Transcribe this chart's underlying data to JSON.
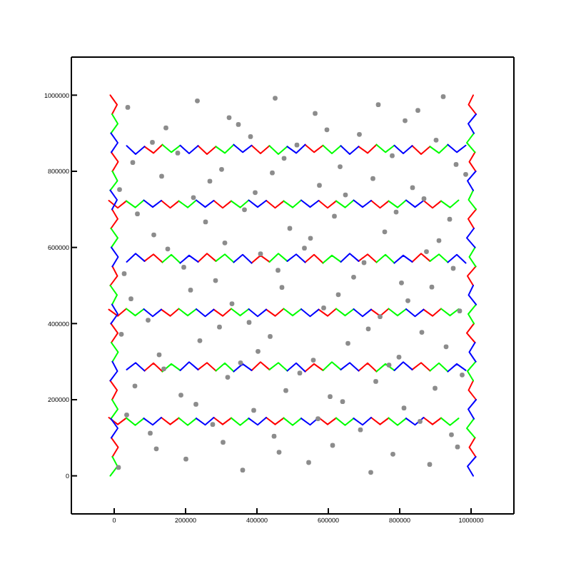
{
  "chart_data": {
    "type": "line",
    "xlim": [
      -120000,
      1120000
    ],
    "ylim": [
      -100000,
      1100000
    ],
    "xticks": [
      0,
      200000,
      400000,
      600000,
      800000,
      1000000
    ],
    "yticks": [
      0,
      200000,
      400000,
      600000,
      800000,
      1000000
    ],
    "series": [
      {
        "color": "#ff0000",
        "x": [
          85000,
          110000,
          135000,
          185000,
          235000,
          260000,
          285000,
          335000,
          385000,
          410000,
          435000,
          485000,
          535000,
          560000,
          585000,
          635000,
          685000,
          710000,
          735000,
          785000,
          835000,
          860000,
          885000
        ],
        "values": [
          865000,
          848000,
          870000,
          null,
          867000,
          845000,
          865000,
          null,
          868000,
          847000,
          867000,
          null,
          870000,
          850000,
          868000,
          null,
          865000,
          848000,
          870000,
          null,
          867000,
          845000,
          865000
        ]
      },
      {
        "color": "#00ff00",
        "x": [
          135000,
          160000,
          185000,
          235000,
          285000,
          310000,
          335000,
          385000,
          435000,
          460000,
          485000,
          535000,
          585000,
          610000,
          635000,
          685000,
          735000,
          760000,
          785000,
          835000,
          885000,
          910000,
          935000
        ],
        "values": [
          870000,
          850000,
          868000,
          null,
          865000,
          848000,
          870000,
          null,
          867000,
          845000,
          865000,
          null,
          868000,
          847000,
          867000,
          null,
          870000,
          850000,
          868000,
          null,
          865000,
          848000,
          870000
        ]
      },
      {
        "color": "#0000ff",
        "x": [
          35000,
          60000,
          85000,
          135000,
          185000,
          210000,
          235000,
          285000,
          335000,
          360000,
          385000,
          435000,
          485000,
          510000,
          535000,
          585000,
          635000,
          660000,
          685000,
          735000,
          785000,
          810000,
          835000,
          885000,
          935000,
          960000,
          985000
        ],
        "values": [
          867000,
          845000,
          865000,
          null,
          868000,
          847000,
          867000,
          null,
          870000,
          850000,
          868000,
          null,
          865000,
          848000,
          870000,
          null,
          867000,
          845000,
          865000,
          null,
          868000,
          847000,
          867000,
          null,
          870000,
          850000,
          868000
        ]
      },
      {
        "color": "#ff0000",
        "x": [
          -15000,
          10000,
          34000,
          83000,
          132000,
          157000,
          181000,
          230000,
          279000,
          304000,
          328000,
          377000,
          426000,
          451000,
          475000,
          524000,
          573000,
          598000,
          622000,
          671000,
          720000,
          745000,
          769000,
          818000,
          867000,
          892000,
          916000
        ],
        "values": [
          723000,
          704000,
          722000,
          null,
          723000,
          704000,
          722000,
          null,
          723000,
          704000,
          722000,
          null,
          723000,
          704000,
          722000,
          null,
          723000,
          704000,
          722000,
          null,
          723000,
          704000,
          722000,
          null,
          723000,
          704000,
          722000
        ]
      },
      {
        "color": "#00ff00",
        "x": [
          34000,
          59000,
          83000,
          132000,
          181000,
          206000,
          230000,
          279000,
          328000,
          353000,
          377000,
          426000,
          475000,
          500000,
          524000,
          573000,
          622000,
          647000,
          671000,
          720000,
          769000,
          794000,
          818000,
          867000,
          916000,
          941000,
          965000
        ],
        "values": [
          722000,
          705000,
          724000,
          null,
          722000,
          705000,
          724000,
          null,
          722000,
          705000,
          724000,
          null,
          722000,
          705000,
          724000,
          null,
          722000,
          705000,
          724000,
          null,
          722000,
          705000,
          724000,
          null,
          722000,
          705000,
          724000
        ]
      },
      {
        "color": "#0000ff",
        "x": [
          83000,
          108000,
          132000,
          181000,
          230000,
          255000,
          279000,
          328000,
          377000,
          402000,
          426000,
          475000,
          524000,
          549000,
          573000,
          622000,
          671000,
          696000,
          720000,
          769000,
          818000,
          843000,
          867000
        ],
        "values": [
          724000,
          706000,
          723000,
          null,
          724000,
          706000,
          723000,
          null,
          724000,
          706000,
          723000,
          null,
          724000,
          706000,
          723000,
          null,
          724000,
          706000,
          723000,
          null,
          724000,
          706000,
          723000
        ]
      },
      {
        "color": "#ff0000",
        "x": [
          85000,
          110000,
          135000,
          185000,
          235000,
          260000,
          285000,
          335000,
          385000,
          410000,
          435000,
          485000,
          535000,
          560000,
          585000,
          635000,
          685000,
          710000,
          735000,
          785000,
          835000,
          860000,
          885000
        ],
        "values": [
          564000,
          582000,
          561000,
          null,
          562000,
          584000,
          564000,
          null,
          559000,
          579000,
          562000,
          null,
          561000,
          581000,
          559000,
          null,
          564000,
          582000,
          561000,
          null,
          562000,
          584000,
          564000
        ]
      },
      {
        "color": "#00ff00",
        "x": [
          135000,
          160000,
          185000,
          235000,
          285000,
          310000,
          335000,
          385000,
          435000,
          460000,
          485000,
          535000,
          585000,
          610000,
          635000,
          685000,
          735000,
          760000,
          785000,
          835000,
          885000,
          910000,
          935000
        ],
        "values": [
          561000,
          581000,
          559000,
          null,
          564000,
          582000,
          561000,
          null,
          562000,
          584000,
          564000,
          null,
          559000,
          579000,
          562000,
          null,
          561000,
          581000,
          559000,
          null,
          564000,
          582000,
          561000
        ]
      },
      {
        "color": "#0000ff",
        "x": [
          35000,
          60000,
          85000,
          135000,
          185000,
          210000,
          235000,
          285000,
          335000,
          360000,
          385000,
          435000,
          485000,
          510000,
          535000,
          585000,
          635000,
          660000,
          685000,
          735000,
          785000,
          810000,
          835000,
          885000,
          935000,
          960000,
          985000
        ],
        "values": [
          562000,
          584000,
          564000,
          null,
          559000,
          579000,
          562000,
          null,
          561000,
          581000,
          559000,
          null,
          564000,
          582000,
          561000,
          null,
          562000,
          584000,
          564000,
          null,
          559000,
          579000,
          562000,
          null,
          561000,
          581000,
          559000
        ]
      },
      {
        "color": "#ff0000",
        "x": [
          -15000,
          10000,
          34000,
          83000,
          132000,
          157000,
          181000,
          230000,
          279000,
          304000,
          328000,
          377000,
          426000,
          451000,
          475000,
          524000,
          573000,
          598000,
          622000,
          671000,
          720000,
          745000,
          769000,
          818000,
          867000,
          892000,
          916000
        ],
        "values": [
          437000,
          420000,
          439000,
          null,
          437000,
          420000,
          439000,
          null,
          437000,
          420000,
          439000,
          null,
          437000,
          420000,
          439000,
          null,
          437000,
          420000,
          439000,
          null,
          437000,
          420000,
          439000,
          null,
          437000,
          420000,
          439000
        ]
      },
      {
        "color": "#00ff00",
        "x": [
          34000,
          59000,
          83000,
          132000,
          181000,
          206000,
          230000,
          279000,
          328000,
          353000,
          377000,
          426000,
          475000,
          500000,
          524000,
          573000,
          622000,
          647000,
          671000,
          720000,
          769000,
          794000,
          818000,
          867000,
          916000,
          941000,
          965000
        ],
        "values": [
          439000,
          421000,
          438000,
          null,
          439000,
          421000,
          438000,
          null,
          439000,
          421000,
          438000,
          null,
          439000,
          421000,
          438000,
          null,
          439000,
          421000,
          438000,
          null,
          439000,
          421000,
          438000,
          null,
          439000,
          421000,
          438000
        ]
      },
      {
        "color": "#0000ff",
        "x": [
          83000,
          108000,
          132000,
          181000,
          230000,
          255000,
          279000,
          328000,
          377000,
          402000,
          426000,
          475000,
          524000,
          549000,
          573000,
          622000,
          671000,
          696000,
          720000,
          769000,
          818000,
          843000,
          867000
        ],
        "values": [
          438000,
          419000,
          437000,
          null,
          438000,
          419000,
          437000,
          null,
          438000,
          419000,
          437000,
          null,
          438000,
          419000,
          437000,
          null,
          438000,
          419000,
          437000,
          null,
          438000,
          419000,
          437000
        ]
      },
      {
        "color": "#ff0000",
        "x": [
          85000,
          110000,
          135000,
          185000,
          235000,
          260000,
          285000,
          335000,
          385000,
          410000,
          435000,
          485000,
          535000,
          560000,
          585000,
          635000,
          685000,
          710000,
          735000,
          785000,
          835000,
          860000,
          885000
        ],
        "values": [
          276000,
          296000,
          274000,
          null,
          279000,
          297000,
          276000,
          null,
          277000,
          299000,
          279000,
          null,
          274000,
          294000,
          277000,
          null,
          276000,
          296000,
          274000,
          null,
          279000,
          297000,
          276000
        ]
      },
      {
        "color": "#00ff00",
        "x": [
          135000,
          160000,
          185000,
          235000,
          285000,
          310000,
          335000,
          385000,
          435000,
          460000,
          485000,
          535000,
          585000,
          610000,
          635000,
          685000,
          735000,
          760000,
          785000,
          835000,
          885000,
          910000,
          935000
        ],
        "values": [
          274000,
          294000,
          277000,
          null,
          276000,
          296000,
          274000,
          null,
          279000,
          297000,
          276000,
          null,
          277000,
          299000,
          279000,
          null,
          274000,
          294000,
          277000,
          null,
          276000,
          296000,
          274000
        ]
      },
      {
        "color": "#0000ff",
        "x": [
          35000,
          60000,
          85000,
          135000,
          185000,
          210000,
          235000,
          285000,
          335000,
          360000,
          385000,
          435000,
          485000,
          510000,
          535000,
          585000,
          635000,
          660000,
          685000,
          735000,
          785000,
          810000,
          835000,
          885000,
          935000,
          960000,
          985000
        ],
        "values": [
          279000,
          297000,
          276000,
          null,
          277000,
          299000,
          279000,
          null,
          274000,
          294000,
          277000,
          null,
          276000,
          296000,
          274000,
          null,
          279000,
          297000,
          276000,
          null,
          277000,
          299000,
          279000,
          null,
          274000,
          294000,
          277000
        ]
      },
      {
        "color": "#ff0000",
        "x": [
          -15000,
          10000,
          34000,
          83000,
          132000,
          157000,
          181000,
          230000,
          279000,
          304000,
          328000,
          377000,
          426000,
          451000,
          475000,
          524000,
          573000,
          598000,
          622000,
          671000,
          720000,
          745000,
          769000,
          818000,
          867000,
          892000,
          916000
        ],
        "values": [
          153000,
          135000,
          152000,
          null,
          153000,
          135000,
          152000,
          null,
          153000,
          135000,
          152000,
          null,
          153000,
          135000,
          152000,
          null,
          153000,
          135000,
          152000,
          null,
          153000,
          135000,
          152000,
          null,
          153000,
          135000,
          152000
        ]
      },
      {
        "color": "#00ff00",
        "x": [
          34000,
          59000,
          83000,
          132000,
          181000,
          206000,
          230000,
          279000,
          328000,
          353000,
          377000,
          426000,
          475000,
          500000,
          524000,
          573000,
          622000,
          647000,
          671000,
          720000,
          769000,
          794000,
          818000,
          867000,
          916000,
          941000,
          965000
        ],
        "values": [
          152000,
          133000,
          151000,
          null,
          152000,
          133000,
          151000,
          null,
          152000,
          133000,
          151000,
          null,
          152000,
          133000,
          151000,
          null,
          152000,
          133000,
          151000,
          null,
          152000,
          133000,
          151000,
          null,
          152000,
          133000,
          151000
        ]
      },
      {
        "color": "#0000ff",
        "x": [
          83000,
          108000,
          132000,
          181000,
          230000,
          255000,
          279000,
          328000,
          377000,
          402000,
          426000,
          475000,
          524000,
          549000,
          573000,
          622000,
          671000,
          696000,
          720000,
          769000,
          818000,
          843000,
          867000
        ],
        "values": [
          151000,
          134000,
          153000,
          null,
          151000,
          134000,
          153000,
          null,
          151000,
          134000,
          153000,
          null,
          151000,
          134000,
          153000,
          null,
          151000,
          134000,
          153000,
          null,
          151000,
          134000,
          153000
        ]
      },
      {
        "color": "#ff0000",
        "x": [
          -11000,
          8000,
          -6000,
          null,
          -8000,
          11000,
          -5000,
          null,
          -6000,
          10000,
          -9000,
          null,
          -5000,
          9000,
          -11000,
          null,
          -9000,
          10000,
          -8000,
          null,
          -11000,
          8000,
          -6000,
          null,
          -8000,
          11000,
          -5000
        ],
        "values": [
          1000000,
          975000,
          950000,
          null,
          850000,
          825000,
          800000,
          null,
          700000,
          675000,
          650000,
          null,
          550000,
          525000,
          500000,
          null,
          400000,
          375000,
          350000,
          null,
          250000,
          225000,
          200000,
          null,
          100000,
          75000,
          50000
        ]
      },
      {
        "color": "#00ff00",
        "x": [
          -6000,
          10000,
          -9000,
          null,
          -5000,
          9000,
          -11000,
          null,
          -9000,
          10000,
          -8000,
          null,
          -11000,
          8000,
          -6000,
          null,
          -8000,
          11000,
          -5000,
          null,
          -6000,
          10000,
          -9000,
          null,
          -5000,
          9000,
          -11000
        ],
        "values": [
          950000,
          925000,
          900000,
          null,
          800000,
          775000,
          750000,
          null,
          650000,
          625000,
          600000,
          null,
          500000,
          475000,
          450000,
          null,
          350000,
          325000,
          300000,
          null,
          200000,
          175000,
          150000,
          null,
          50000,
          25000,
          0
        ]
      },
      {
        "color": "#0000ff",
        "x": [
          -9000,
          10000,
          -8000,
          null,
          -11000,
          8000,
          -6000,
          null,
          -8000,
          11000,
          -5000,
          null,
          -6000,
          10000,
          -9000,
          null,
          -5000,
          9000,
          -11000,
          null,
          -9000,
          10000,
          -8000
        ],
        "values": [
          900000,
          875000,
          850000,
          null,
          750000,
          725000,
          700000,
          null,
          600000,
          575000,
          550000,
          null,
          450000,
          425000,
          400000,
          null,
          300000,
          275000,
          250000,
          null,
          150000,
          125000,
          100000
        ]
      },
      {
        "color": "#ff0000",
        "x": [
          1013000,
          995000,
          1011000,
          null,
          1014000,
          993000,
          1006000,
          null,
          1011000,
          988000,
          1008000,
          null,
          1006000,
          990000,
          1013000,
          null,
          1008000,
          992000,
          1014000,
          null,
          1013000,
          995000,
          1011000,
          null,
          1014000,
          993000,
          1006000
        ],
        "values": [
          50000,
          75000,
          100000,
          null,
          200000,
          225000,
          250000,
          null,
          350000,
          375000,
          400000,
          null,
          500000,
          525000,
          550000,
          null,
          650000,
          675000,
          700000,
          null,
          800000,
          825000,
          850000,
          null,
          950000,
          975000,
          1000000
        ]
      },
      {
        "color": "#00ff00",
        "x": [
          1011000,
          988000,
          1008000,
          null,
          1006000,
          990000,
          1013000,
          null,
          1008000,
          992000,
          1014000,
          null,
          1013000,
          995000,
          1011000,
          null,
          1014000,
          993000,
          1006000,
          null,
          1011000,
          988000,
          1008000
        ],
        "values": [
          100000,
          125000,
          150000,
          null,
          250000,
          275000,
          300000,
          null,
          400000,
          425000,
          450000,
          null,
          550000,
          575000,
          600000,
          null,
          700000,
          725000,
          750000,
          null,
          850000,
          875000,
          900000
        ]
      },
      {
        "color": "#0000ff",
        "x": [
          1006000,
          990000,
          1013000,
          null,
          1008000,
          992000,
          1014000,
          null,
          1013000,
          995000,
          1011000,
          null,
          1014000,
          993000,
          1006000,
          null,
          1011000,
          988000,
          1008000,
          null,
          1006000,
          990000,
          1013000,
          null,
          1008000,
          992000,
          1014000
        ],
        "values": [
          0,
          25000,
          50000,
          null,
          150000,
          175000,
          200000,
          null,
          300000,
          325000,
          350000,
          null,
          450000,
          475000,
          500000,
          null,
          600000,
          625000,
          650000,
          null,
          750000,
          775000,
          800000,
          null,
          900000,
          925000,
          950000
        ]
      },
      {
        "type": "scatter",
        "marker": "circle",
        "color": "#8c8c8c",
        "x": [
          12000,
          118000,
          201000,
          305000,
          360000,
          462000,
          545000,
          612000,
          719000,
          781000,
          884000,
          962000,
          35000,
          101000,
          229000,
          276000,
          391000,
          448000,
          571000,
          640000,
          690000,
          812000,
          857000,
          945000,
          58000,
          139000,
          187000,
          318000,
          354000,
          481000,
          520000,
          605000,
          733000,
          770000,
          899000,
          975000,
          20000,
          126000,
          240000,
          295000,
          403000,
          437000,
          558000,
          655000,
          712000,
          798000,
          862000,
          930000,
          47000,
          95000,
          214000,
          330000,
          378000,
          470000,
          587000,
          628000,
          745000,
          823000,
          890000,
          968000,
          28000,
          150000,
          195000,
          284000,
          410000,
          459000,
          533000,
          671000,
          700000,
          805000,
          875000,
          950000,
          65000,
          111000,
          256000,
          310000,
          365000,
          492000,
          550000,
          617000,
          758000,
          790000,
          910000,
          940000,
          15000,
          133000,
          222000,
          268000,
          395000,
          443000,
          575000,
          648000,
          725000,
          836000,
          868000,
          985000,
          52000,
          107000,
          178000,
          301000,
          382000,
          476000,
          512000,
          633000,
          687000,
          779000,
          902000,
          958000,
          38000,
          145000,
          233000,
          322000,
          348000,
          451000,
          563000,
          596000,
          740000,
          815000,
          851000,
          922000
        ],
        "values": [
          22000,
          71000,
          44000,
          88000,
          15000,
          62000,
          35000,
          80000,
          9000,
          57000,
          30000,
          76000,
          160000,
          112000,
          188000,
          135000,
          172000,
          104000,
          150000,
          195000,
          121000,
          178000,
          143000,
          108000,
          236000,
          281000,
          212000,
          259000,
          297000,
          224000,
          270000,
          208000,
          248000,
          291000,
          230000,
          265000,
          372000,
          318000,
          355000,
          391000,
          327000,
          366000,
          304000,
          348000,
          386000,
          312000,
          377000,
          339000,
          465000,
          409000,
          488000,
          452000,
          403000,
          495000,
          441000,
          476000,
          418000,
          460000,
          496000,
          433000,
          531000,
          596000,
          548000,
          513000,
          583000,
          540000,
          598000,
          522000,
          560000,
          507000,
          589000,
          545000,
          688000,
          633000,
          667000,
          612000,
          699000,
          650000,
          624000,
          682000,
          641000,
          693000,
          618000,
          674000,
          752000,
          787000,
          731000,
          774000,
          744000,
          796000,
          763000,
          738000,
          781000,
          757000,
          728000,
          792000,
          823000,
          876000,
          848000,
          805000,
          891000,
          834000,
          869000,
          812000,
          897000,
          841000,
          882000,
          818000,
          968000,
          914000,
          985000,
          941000,
          923000,
          992000,
          952000,
          909000,
          975000,
          933000,
          960000,
          996000
        ]
      }
    ]
  }
}
